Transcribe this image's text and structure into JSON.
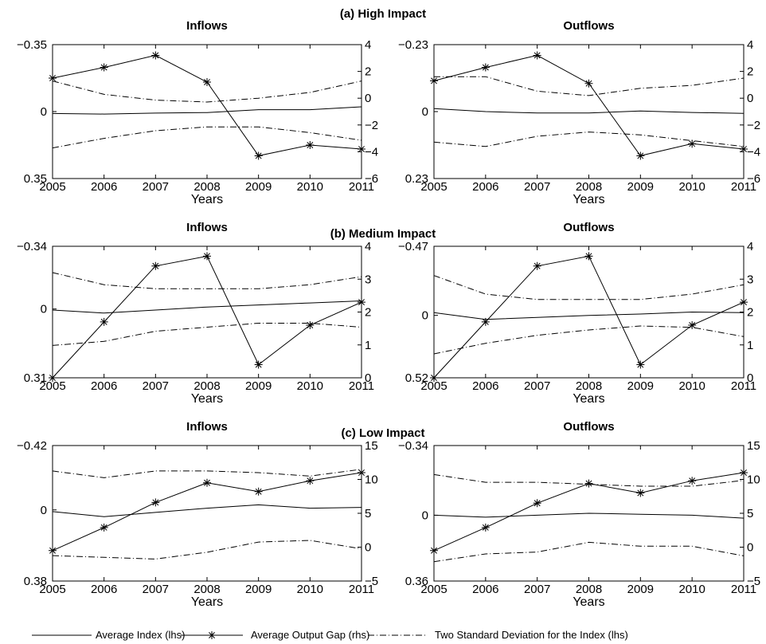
{
  "chart_data": [
    {
      "type": "line",
      "section_title": "(a) High Impact",
      "title": "Inflows",
      "xlabel": "Years",
      "x": [
        2005,
        2006,
        2007,
        2008,
        2009,
        2010,
        2011
      ],
      "ylim_left": [
        -0.35,
        0.35
      ],
      "yticks_left": [
        "−0.35",
        "0",
        "0.35"
      ],
      "ylim_right": [
        -6,
        4
      ],
      "yticks_right": [
        4,
        2,
        0,
        -2,
        -4,
        -6
      ],
      "series": [
        {
          "name": "Average Index (lhs)",
          "axis": "left",
          "style": "solid",
          "values": [
            -0.01,
            -0.013,
            -0.008,
            -0.005,
            0.01,
            0.01,
            0.025
          ]
        },
        {
          "name": "Average Output Gap (rhs)",
          "axis": "right",
          "style": "star",
          "values": [
            1.5,
            2.3,
            3.2,
            1.2,
            -4.3,
            -3.5,
            -3.8
          ]
        },
        {
          "name": "Two Standard Deviation for the Index (lhs)",
          "axis": "left",
          "style": "dashdot",
          "values": [
            0.16,
            0.09,
            0.06,
            0.05,
            0.07,
            0.1,
            0.16
          ]
        },
        {
          "name": "Two Standard Deviation for the Index (lhs)",
          "axis": "left",
          "style": "dashdot",
          "values": [
            -0.19,
            -0.14,
            -0.1,
            -0.08,
            -0.08,
            -0.11,
            -0.15
          ]
        }
      ]
    },
    {
      "type": "line",
      "title": "Outflows",
      "xlabel": "Years",
      "x": [
        2005,
        2006,
        2007,
        2008,
        2009,
        2010,
        2011
      ],
      "ylim_left": [
        -0.23,
        0.23
      ],
      "yticks_left": [
        "−0.23",
        "0",
        "0.23"
      ],
      "ylim_right": [
        -6,
        4
      ],
      "yticks_right": [
        4,
        2,
        0,
        -2,
        -4,
        -6
      ],
      "series": [
        {
          "name": "Average Index (lhs)",
          "axis": "left",
          "style": "solid",
          "values": [
            0.01,
            0.0,
            -0.005,
            -0.005,
            0.002,
            -0.003,
            -0.006
          ]
        },
        {
          "name": "Average Output Gap (rhs)",
          "axis": "right",
          "style": "star",
          "values": [
            1.3,
            2.3,
            3.2,
            1.1,
            -4.3,
            -3.4,
            -3.8
          ]
        },
        {
          "name": "Two Standard Deviation for the Index (lhs)",
          "axis": "left",
          "style": "dashdot",
          "values": [
            0.12,
            0.12,
            0.07,
            0.055,
            0.08,
            0.09,
            0.115
          ]
        },
        {
          "name": "Two Standard Deviation for the Index (lhs)",
          "axis": "left",
          "style": "dashdot",
          "values": [
            -0.105,
            -0.12,
            -0.085,
            -0.07,
            -0.08,
            -0.1,
            -0.12
          ]
        }
      ]
    },
    {
      "type": "line",
      "section_title": "(b) Medium Impact",
      "title": "Inflows",
      "xlabel": "Years",
      "x": [
        2005,
        2006,
        2007,
        2008,
        2009,
        2010,
        2011
      ],
      "ylim_left": [
        -0.34,
        0.31
      ],
      "yticks_left": [
        "−0.34",
        "0",
        "0.31"
      ],
      "ylim_right": [
        0,
        4
      ],
      "yticks_right": [
        4,
        3,
        2,
        1,
        0
      ],
      "series": [
        {
          "name": "Average Index (lhs)",
          "axis": "left",
          "style": "solid",
          "values": [
            -0.005,
            -0.02,
            -0.005,
            0.01,
            0.02,
            0.03,
            0.04
          ]
        },
        {
          "name": "Average Output Gap (rhs)",
          "axis": "right",
          "style": "star",
          "values": [
            0.0,
            1.7,
            3.4,
            3.7,
            0.4,
            1.6,
            2.3
          ]
        },
        {
          "name": "Two Standard Deviation for the Index (lhs)",
          "axis": "left",
          "style": "dashdot",
          "values": [
            0.18,
            0.12,
            0.1,
            0.1,
            0.1,
            0.12,
            0.16
          ]
        },
        {
          "name": "Two Standard Deviation for the Index (lhs)",
          "axis": "left",
          "style": "dashdot",
          "values": [
            -0.18,
            -0.16,
            -0.11,
            -0.09,
            -0.07,
            -0.07,
            -0.09
          ]
        }
      ]
    },
    {
      "type": "line",
      "title": "Outflows",
      "xlabel": "Years",
      "x": [
        2005,
        2006,
        2007,
        2008,
        2009,
        2010,
        2011
      ],
      "ylim_left": [
        -0.47,
        0.52
      ],
      "yticks_left": [
        "−0.47",
        "0",
        "0.52"
      ],
      "ylim_right": [
        0,
        4
      ],
      "yticks_right": [
        4,
        3,
        2,
        1,
        0
      ],
      "series": [
        {
          "name": "Average Index (lhs)",
          "axis": "left",
          "style": "solid",
          "values": [
            0.02,
            -0.03,
            -0.015,
            0.0,
            0.01,
            0.025,
            0.02
          ]
        },
        {
          "name": "Average Output Gap (rhs)",
          "axis": "right",
          "style": "star",
          "values": [
            0.0,
            1.7,
            3.4,
            3.7,
            0.4,
            1.6,
            2.3
          ]
        },
        {
          "name": "Two Standard Deviation for the Index (lhs)",
          "axis": "left",
          "style": "dashdot",
          "values": [
            0.3,
            0.16,
            0.12,
            0.12,
            0.12,
            0.16,
            0.23
          ]
        },
        {
          "name": "Two Standard Deviation for the Index (lhs)",
          "axis": "left",
          "style": "dashdot",
          "values": [
            -0.29,
            -0.21,
            -0.15,
            -0.11,
            -0.08,
            -0.09,
            -0.16
          ]
        }
      ]
    },
    {
      "type": "line",
      "section_title": "(c) Low Impact",
      "title": "Inflows",
      "xlabel": "Years",
      "x": [
        2005,
        2006,
        2007,
        2008,
        2009,
        2010,
        2011
      ],
      "ylim_left": [
        -0.42,
        0.38
      ],
      "yticks_left": [
        "−0.42",
        "0",
        "0.38"
      ],
      "ylim_right": [
        -5,
        15
      ],
      "yticks_right": [
        15,
        10,
        5,
        0,
        -5
      ],
      "series": [
        {
          "name": "Average Index (lhs)",
          "axis": "left",
          "style": "solid",
          "values": [
            -0.01,
            -0.04,
            -0.015,
            0.01,
            0.03,
            0.01,
            0.015
          ]
        },
        {
          "name": "Average Output Gap (rhs)",
          "axis": "right",
          "style": "star",
          "values": [
            -0.5,
            2.9,
            6.6,
            9.5,
            8.2,
            9.8,
            11.0
          ]
        },
        {
          "name": "Two Standard Deviation for the Index (lhs)",
          "axis": "left",
          "style": "dashdot",
          "values": [
            0.23,
            0.19,
            0.23,
            0.23,
            0.22,
            0.2,
            0.24
          ]
        },
        {
          "name": "Two Standard Deviation for the Index (lhs)",
          "axis": "left",
          "style": "dashdot",
          "values": [
            -0.27,
            -0.28,
            -0.29,
            -0.25,
            -0.19,
            -0.18,
            -0.23
          ]
        }
      ]
    },
    {
      "type": "line",
      "title": "Outflows",
      "xlabel": "Years",
      "x": [
        2005,
        2006,
        2007,
        2008,
        2009,
        2010,
        2011
      ],
      "ylim_left": [
        -0.34,
        0.36
      ],
      "yticks_left": [
        "−0.34",
        "0",
        "0.36"
      ],
      "ylim_right": [
        -5,
        15
      ],
      "yticks_right": [
        15,
        10,
        5,
        0,
        -5
      ],
      "series": [
        {
          "name": "Average Index (lhs)",
          "axis": "left",
          "style": "solid",
          "values": [
            0.0,
            -0.01,
            0.0,
            0.01,
            0.005,
            0.0,
            -0.015
          ]
        },
        {
          "name": "Average Output Gap (rhs)",
          "axis": "right",
          "style": "star",
          "values": [
            -0.5,
            2.9,
            6.5,
            9.4,
            8.0,
            9.8,
            11.0
          ]
        },
        {
          "name": "Two Standard Deviation for the Index (lhs)",
          "axis": "left",
          "style": "dashdot",
          "values": [
            0.21,
            0.17,
            0.17,
            0.16,
            0.15,
            0.15,
            0.18
          ]
        },
        {
          "name": "Two Standard Deviation for the Index (lhs)",
          "axis": "left",
          "style": "dashdot",
          "values": [
            -0.24,
            -0.2,
            -0.19,
            -0.14,
            -0.16,
            -0.16,
            -0.21
          ]
        }
      ]
    }
  ],
  "legend": {
    "items": [
      {
        "label": "Average Index (lhs)",
        "style": "solid"
      },
      {
        "label": "Average Output Gap (rhs)",
        "style": "star"
      },
      {
        "label": "Two Standard Deviation for the Index (lhs)",
        "style": "dashdot"
      }
    ],
    "placement": "bottom"
  },
  "colors": {
    "line": "#000000",
    "background": "#ffffff"
  }
}
